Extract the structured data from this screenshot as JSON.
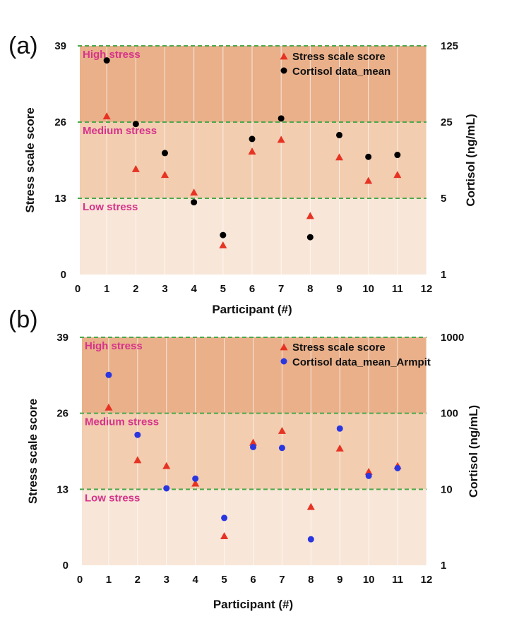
{
  "chart_data": [
    {
      "type": "scatter",
      "panel_label": "(a)",
      "xlabel": "Participant (#)",
      "ylabel_left": "Stress scale score",
      "ylabel_right": "Cortisol (ng/mL)",
      "xlim": [
        0,
        12
      ],
      "x_ticks": [
        "0",
        "1",
        "2",
        "3",
        "4",
        "5",
        "6",
        "7",
        "8",
        "9",
        "10",
        "11",
        "12"
      ],
      "ylim_left": [
        0,
        39
      ],
      "y_ticks_left": [
        "0",
        "13",
        "26",
        "39"
      ],
      "y_scale_right": "log",
      "ylim_right": [
        1,
        125
      ],
      "y_ticks_right": [
        "1",
        "5",
        "25",
        "125"
      ],
      "zones": [
        {
          "label": "High stress",
          "from": 26,
          "to": 39,
          "color": "#e9b08a"
        },
        {
          "label": "Medium stress",
          "from": 13,
          "to": 26,
          "color": "#f2cdb0"
        },
        {
          "label": "Low stress",
          "from": 0,
          "to": 13,
          "color": "#f8e6d8"
        }
      ],
      "legend_position": "top-right",
      "series": [
        {
          "name": "Stress scale score",
          "marker": "triangle",
          "color": "#e63323",
          "axis": "left",
          "x": [
            1,
            2,
            3,
            4,
            5,
            6,
            7,
            8,
            9,
            10,
            11
          ],
          "values": [
            27,
            18,
            17,
            14,
            5,
            21,
            23,
            10,
            20,
            16,
            17
          ]
        },
        {
          "name": "Cortisol data_mean",
          "marker": "circle",
          "color": "#000000",
          "axis": "right",
          "x": [
            1,
            2,
            3,
            4,
            5,
            6,
            7,
            8,
            9,
            10,
            11
          ],
          "values": [
            92,
            24,
            13,
            4.6,
            2.3,
            17.5,
            27,
            2.2,
            19,
            12,
            12.5
          ]
        }
      ]
    },
    {
      "type": "scatter",
      "panel_label": "(b)",
      "xlabel": "Participant (#)",
      "ylabel_left": "Stress scale score",
      "ylabel_right": "Cortisol (ng/mL)",
      "xlim": [
        0,
        12
      ],
      "x_ticks": [
        "0",
        "1",
        "2",
        "3",
        "4",
        "5",
        "6",
        "7",
        "8",
        "9",
        "10",
        "11",
        "12"
      ],
      "ylim_left": [
        0,
        39
      ],
      "y_ticks_left": [
        "0",
        "13",
        "26",
        "39"
      ],
      "y_scale_right": "log",
      "ylim_right": [
        1,
        1000
      ],
      "y_ticks_right": [
        "1",
        "10",
        "100",
        "1000"
      ],
      "zones": [
        {
          "label": "High stress",
          "from": 26,
          "to": 39,
          "color": "#e9b08a"
        },
        {
          "label": "Medium stress",
          "from": 13,
          "to": 26,
          "color": "#f2cdb0"
        },
        {
          "label": "Low stress",
          "from": 0,
          "to": 13,
          "color": "#f8e6d8"
        }
      ],
      "legend_position": "top-right",
      "series": [
        {
          "name": "Stress scale score",
          "marker": "triangle",
          "color": "#e63323",
          "axis": "left",
          "x": [
            1,
            2,
            3,
            4,
            5,
            6,
            7,
            8,
            9,
            10,
            11
          ],
          "values": [
            27,
            18,
            17,
            14,
            5,
            21,
            23,
            10,
            20,
            16,
            17
          ]
        },
        {
          "name": "Cortisol data_mean_Armpit",
          "marker": "circle",
          "color": "#2a36e0",
          "axis": "right",
          "x": [
            1,
            2,
            3,
            4,
            5,
            6,
            7,
            8,
            9,
            10,
            11
          ],
          "values": [
            320,
            52,
            10.3,
            13.8,
            4.2,
            36,
            35,
            2.2,
            63,
            15,
            19
          ]
        }
      ]
    }
  ]
}
